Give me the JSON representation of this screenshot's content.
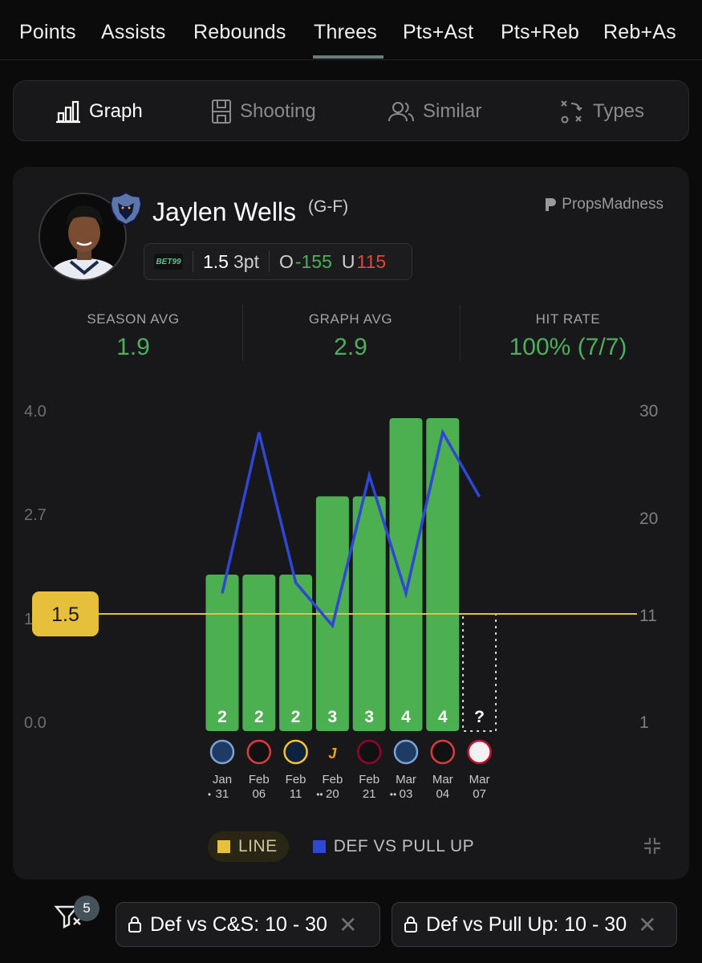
{
  "stat_tabs": [
    "Points",
    "Assists",
    "Rebounds",
    "Threes",
    "Pts+Ast",
    "Pts+Reb",
    "Reb+As"
  ],
  "active_stat_tab": "Threes",
  "view_tabs": {
    "graph": "Graph",
    "shooting": "Shooting",
    "similar": "Similar",
    "types": "Types"
  },
  "player": {
    "name": "Jaylen Wells",
    "position": "(G-F)",
    "team_logo": "memphis-grizzlies-logo",
    "avatar": "player-headshot"
  },
  "brand": "PropsMadness",
  "prop_line": {
    "book": "BET99",
    "line": "1.5",
    "market": "3pt",
    "over_label": "O",
    "over_odds": "-155",
    "under_label": "U",
    "under_odds": "115"
  },
  "summary": {
    "season_avg_label": "SEASON AVG",
    "season_avg": "1.9",
    "graph_avg_label": "GRAPH AVG",
    "graph_avg": "2.9",
    "hit_rate_label": "HIT RATE",
    "hit_rate": "100% (7/7)"
  },
  "chart_data": {
    "type": "bar",
    "line_value": 1.5,
    "line_label": "1.5",
    "y_left_ticks": [
      "4.0",
      "2.7",
      "1",
      "0.0"
    ],
    "y_right_ticks": [
      "30",
      "20",
      "11",
      "1"
    ],
    "y_left_range": [
      0,
      4
    ],
    "y_right_range": [
      1,
      30
    ],
    "games": [
      {
        "month": "Jan",
        "day": "31",
        "value": 2,
        "label": "2",
        "opponent": "timberwolves-logo",
        "def_vs_pull_up": 13,
        "marker": "•"
      },
      {
        "month": "Feb",
        "day": "06",
        "value": 2,
        "label": "2",
        "opponent": "trail-blazers-logo",
        "def_vs_pull_up": 28,
        "marker": ""
      },
      {
        "month": "Feb",
        "day": "11",
        "value": 2,
        "label": "2",
        "opponent": "nuggets-logo",
        "def_vs_pull_up": 14,
        "marker": ""
      },
      {
        "month": "Feb",
        "day": "20",
        "value": 3,
        "label": "3",
        "opponent": "jazz-logo",
        "def_vs_pull_up": 10,
        "marker": "••"
      },
      {
        "month": "Feb",
        "day": "21",
        "value": 3,
        "label": "3",
        "opponent": "heat-logo",
        "def_vs_pull_up": 24,
        "marker": ""
      },
      {
        "month": "Mar",
        "day": "03",
        "value": 4,
        "label": "4",
        "opponent": "timberwolves-logo",
        "def_vs_pull_up": 13,
        "marker": "••"
      },
      {
        "month": "Mar",
        "day": "04",
        "value": 4,
        "label": "4",
        "opponent": "trail-blazers-logo",
        "def_vs_pull_up": 28,
        "marker": ""
      },
      {
        "month": "Mar",
        "day": "07",
        "value": null,
        "label": "?",
        "opponent": "clippers-logo",
        "def_vs_pull_up": 22,
        "marker": ""
      }
    ],
    "series": [
      {
        "name": "LINE",
        "color": "#e7c03b"
      },
      {
        "name": "DEF VS PULL UP",
        "color": "#2f46d6"
      }
    ],
    "bar_color": "#4caf50"
  },
  "legend": {
    "line_label": "LINE",
    "def_label": "DEF VS PULL UP"
  },
  "filters": {
    "count": "5",
    "chips": [
      {
        "label": "Def vs C&S: 10 - 30"
      },
      {
        "label": "Def vs Pull Up: 10 - 30"
      }
    ]
  }
}
